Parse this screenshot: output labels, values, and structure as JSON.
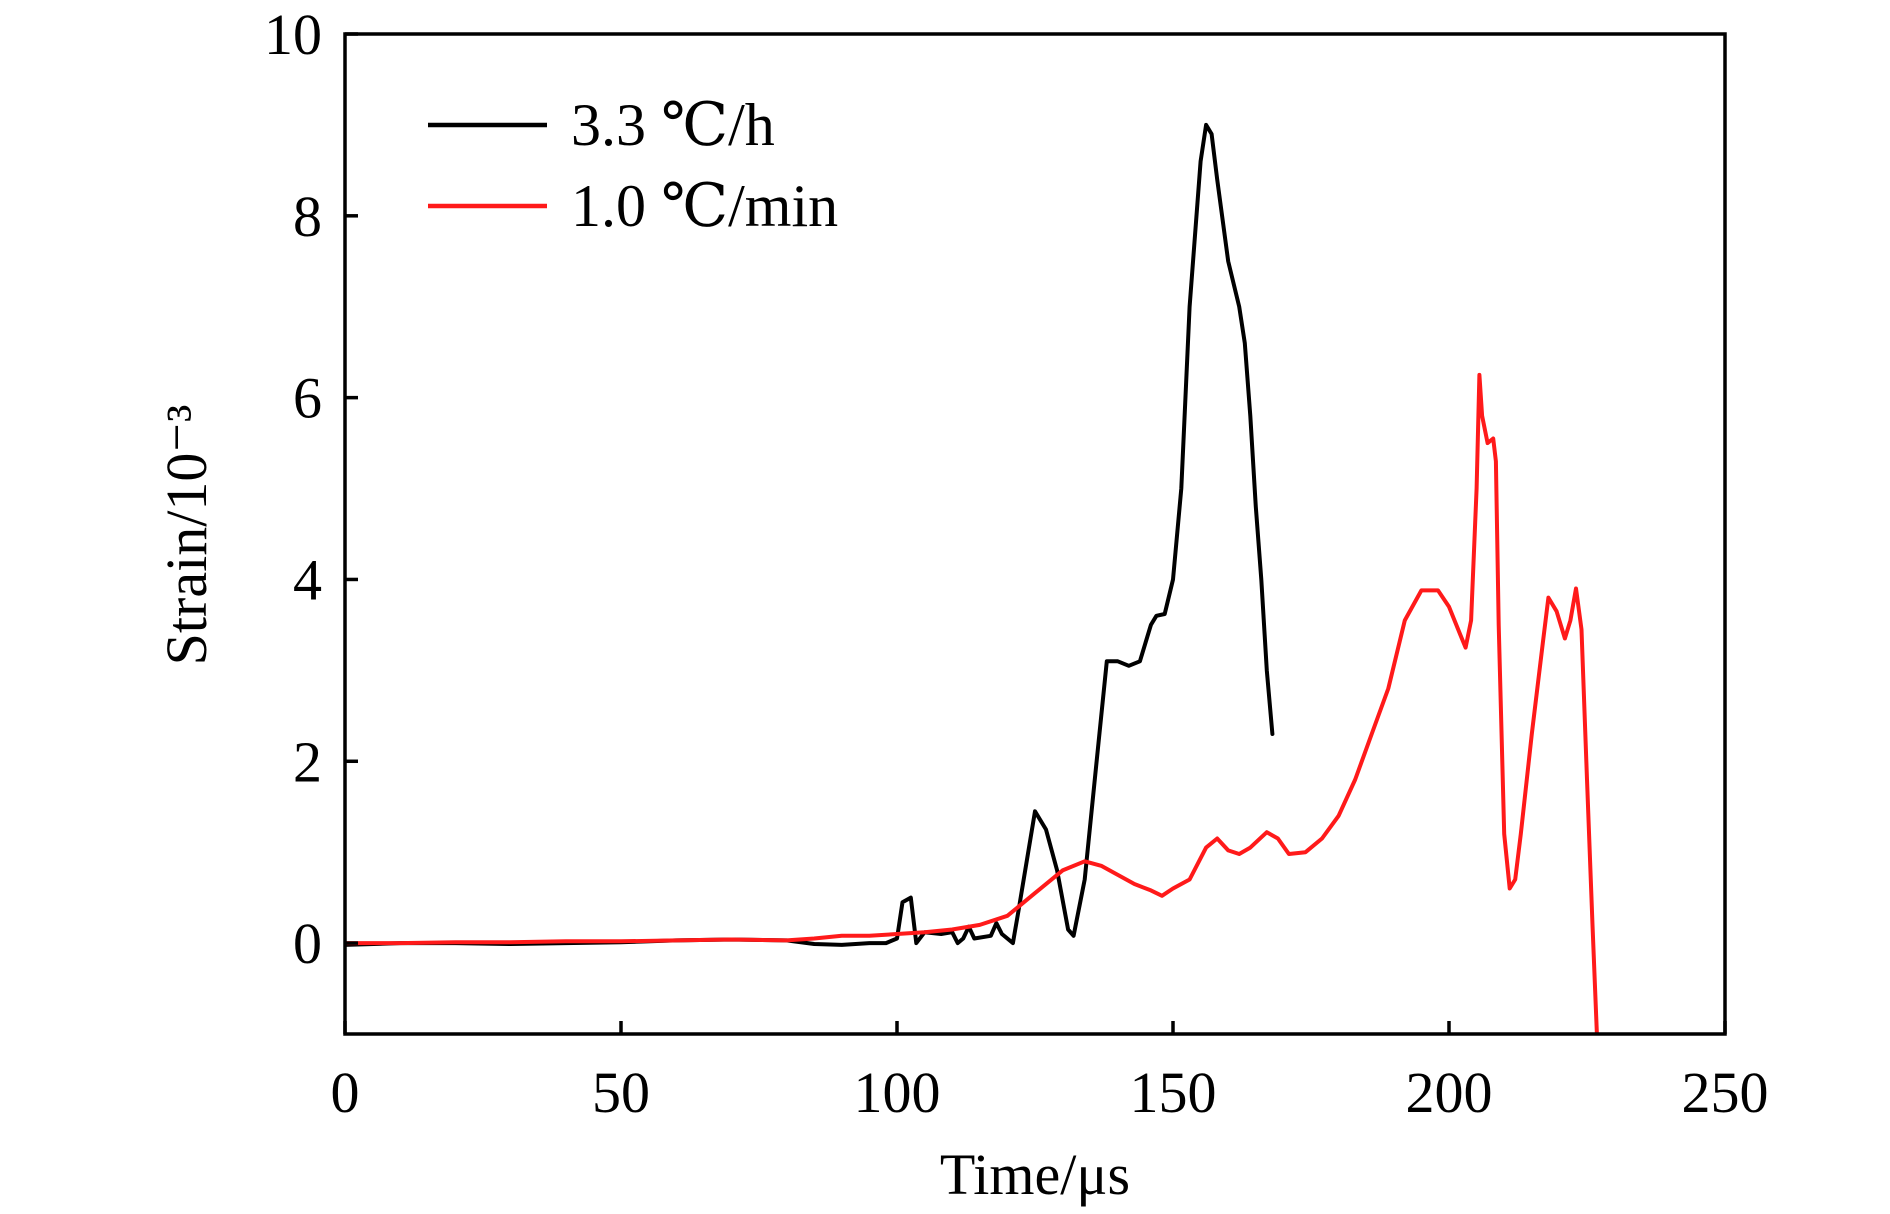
{
  "chart_data": {
    "type": "line",
    "title": "",
    "xlabel": "Time/μs",
    "ylabel": "Strain/10⁻³",
    "xlim": [
      0,
      250
    ],
    "ylim": [
      -1,
      10
    ],
    "xticks": [
      0,
      50,
      100,
      150,
      200,
      250
    ],
    "yticks": [
      0,
      2,
      4,
      6,
      8,
      10
    ],
    "grid": false,
    "legend_position": "top-left",
    "series": [
      {
        "name": "3.3 ℃/h",
        "color": "#000000",
        "x": [
          0,
          10,
          20,
          30,
          40,
          50,
          60,
          70,
          80,
          85,
          90,
          95,
          98,
          100,
          101,
          102.5,
          103.5,
          105,
          108,
          110,
          111,
          112,
          113,
          114,
          117,
          118,
          119,
          121,
          122,
          125,
          127,
          129,
          131,
          132,
          134,
          136,
          138,
          140,
          142,
          144,
          146,
          147,
          148.5,
          150,
          151.5,
          153,
          155,
          156,
          157,
          158,
          160,
          162,
          163,
          164,
          165,
          166,
          167,
          168
        ],
        "y": [
          -0.02,
          0,
          0,
          -0.01,
          0,
          0.01,
          0.03,
          0.04,
          0.03,
          -0.01,
          -0.02,
          0,
          0,
          0.05,
          0.45,
          0.5,
          0,
          0.12,
          0.1,
          0.12,
          0,
          0.05,
          0.18,
          0.05,
          0.08,
          0.22,
          0.1,
          0,
          0.35,
          1.45,
          1.25,
          0.8,
          0.15,
          0.08,
          0.7,
          1.9,
          3.1,
          3.1,
          3.05,
          3.1,
          3.5,
          3.6,
          3.62,
          4.0,
          5.0,
          7.0,
          8.6,
          9.0,
          8.9,
          8.4,
          7.5,
          7.0,
          6.6,
          5.8,
          4.8,
          4.0,
          3.0,
          2.3
        ]
      },
      {
        "name": "1.0 ℃/min",
        "color": "#ff1a1a",
        "x": [
          0,
          10,
          20,
          30,
          40,
          50,
          60,
          70,
          80,
          85,
          90,
          95,
          100,
          105,
          110,
          115,
          120,
          125,
          130,
          134,
          137,
          140,
          143,
          146,
          148,
          150,
          153,
          156,
          158,
          160,
          162,
          164,
          167,
          169,
          171,
          174,
          177,
          180,
          183,
          186,
          189,
          192,
          195,
          198,
          200,
          202,
          203,
          204,
          205,
          205.5,
          206,
          207,
          208,
          208.5,
          209,
          210,
          211,
          212,
          213,
          215,
          217,
          218,
          219.5,
          221,
          222,
          223,
          224,
          225,
          226,
          226.8
        ],
        "y": [
          0,
          0,
          0.01,
          0.01,
          0.02,
          0.02,
          0.03,
          0.04,
          0.03,
          0.05,
          0.08,
          0.08,
          0.1,
          0.12,
          0.15,
          0.2,
          0.3,
          0.55,
          0.8,
          0.9,
          0.85,
          0.75,
          0.65,
          0.58,
          0.52,
          0.6,
          0.7,
          1.05,
          1.15,
          1.02,
          0.98,
          1.05,
          1.22,
          1.15,
          0.98,
          1.0,
          1.15,
          1.4,
          1.8,
          2.3,
          2.8,
          3.55,
          3.88,
          3.88,
          3.7,
          3.4,
          3.25,
          3.55,
          5.0,
          6.25,
          5.8,
          5.5,
          5.55,
          5.3,
          3.5,
          1.2,
          0.6,
          0.7,
          1.2,
          2.3,
          3.3,
          3.8,
          3.65,
          3.35,
          3.55,
          3.9,
          3.45,
          1.8,
          0.2,
          -1.0
        ]
      }
    ]
  }
}
